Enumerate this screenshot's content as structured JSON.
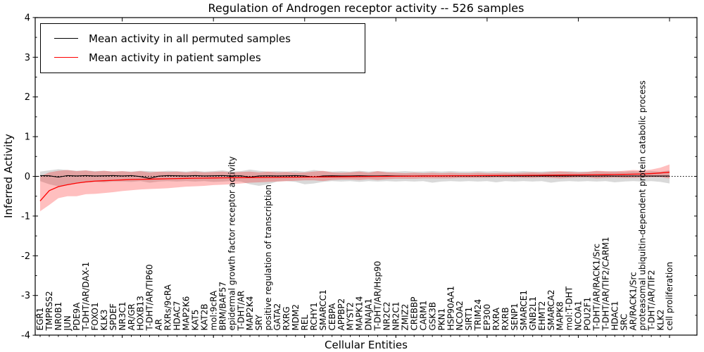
{
  "figure": {
    "title": "Regulation of Androgen receptor activity -- 526 samples",
    "xlabel": "Cellular Entities",
    "ylabel": "Inferred Activity"
  },
  "legend": {
    "entries": [
      {
        "label": "Mean activity in all permuted samples",
        "color": "#000000"
      },
      {
        "label": "Mean activity in patient samples",
        "color": "#ff0000"
      }
    ]
  },
  "axes": {
    "y_tick_labels": [
      "4",
      "3",
      "2",
      "1",
      "0",
      "-1",
      "-2",
      "-3",
      "-4"
    ],
    "y_tick_values": [
      4,
      3,
      2,
      1,
      0,
      -1,
      -2,
      -3,
      -4
    ],
    "y_minor_step": 0.5,
    "x_major_tick_indices": [
      9,
      19,
      29,
      39,
      49,
      59,
      69
    ]
  },
  "chart_data": {
    "type": "line",
    "title": "Regulation of Androgen receptor activity -- 526 samples",
    "xlabel": "Cellular Entities",
    "ylabel": "Inferred Activity",
    "ylim": [
      -4,
      4
    ],
    "grid": false,
    "legend_position": "upper left",
    "zero_line": true,
    "categories": [
      "EGR1",
      "TMPRSS2",
      "NR0B1",
      "JUN",
      "PDE9A",
      "T-DHT/AR/DAX-1",
      "FOXO1",
      "KLK3",
      "SPDEF",
      "NR3C1",
      "AR/GR",
      "HOXB13",
      "T-DHT/AR/TIP60",
      "AR",
      "RXRs/9cRA",
      "HDAC7",
      "MAP2K6",
      "KAT5",
      "KAT2B",
      "mol:9cRA",
      "BRM/BAF57",
      "epidermal growth factor receptor activity",
      "T-DHT/AR",
      "MAP2K4",
      "SRY",
      "positive regulation of transcription",
      "GATA2",
      "RXRG",
      "MDM2",
      "REL",
      "RCHY1",
      "SMARCC1",
      "CEBPA",
      "APPBP2",
      "MYST2",
      "MAPK14",
      "DNAJA1",
      "T-DHT/AR/Hsp90",
      "NR2C2",
      "NR2C1",
      "ZMIZ2",
      "CREBBP",
      "CARM1",
      "GSK3B",
      "PKN1",
      "HSP90AA1",
      "NCOA2",
      "SIRT1",
      "TRIM24",
      "EP300",
      "RXRA",
      "RXRB",
      "SENP1",
      "SMARCE1",
      "GNB2L1",
      "EHMT2",
      "SMARCA2",
      "MAPK8",
      "mol:T-DHT",
      "NCOA1",
      "POU2F1",
      "T-DHT/AR/RACK1/Src",
      "T-DHT/AR/TIF2/CARM1",
      "HDAC1",
      "SRC",
      "AR/RACK1/Src",
      "proteasomal ubiquitin-dependent protein catabolic process",
      "T-DHT/AR/TIF2",
      "KLK2",
      "cell proliferation"
    ],
    "series": [
      {
        "name": "Mean activity in all permuted samples",
        "color": "#000000",
        "band_color": "rgba(0,0,0,0.15)",
        "values": [
          0.02,
          0.015,
          -0.02,
          0.02,
          0.01,
          0.02,
          0.01,
          0.015,
          0.02,
          0.01,
          0.02,
          -0.005,
          -0.05,
          0.005,
          0.02,
          0.015,
          0.01,
          0.02,
          0.01,
          0.015,
          0.02,
          0.01,
          0.015,
          -0.02,
          0.01,
          0.015,
          0.01,
          0.015,
          0.02,
          0.01,
          -0.02,
          0.01,
          0.015,
          0.01,
          0.01,
          0.015,
          0.01,
          0.01,
          0.015,
          0.01,
          0.01,
          0.01,
          0.012,
          0.01,
          0.008,
          0.012,
          0.01,
          0.008,
          0.012,
          0.008,
          0.01,
          0.008,
          0.01,
          0.008,
          0.01,
          0.008,
          0.01,
          0.008,
          0.008,
          0.01,
          0.008,
          0.008,
          0.01,
          0.008,
          0.008,
          0.01,
          0.008,
          0.008,
          0.008,
          0.008
        ],
        "band_upper": [
          0.12,
          0.15,
          0.18,
          0.16,
          0.14,
          0.15,
          0.13,
          0.14,
          0.12,
          0.13,
          0.12,
          0.14,
          0.13,
          0.12,
          0.14,
          0.13,
          0.12,
          0.14,
          0.12,
          0.13,
          0.15,
          0.12,
          0.13,
          0.17,
          0.14,
          0.12,
          0.13,
          0.12,
          0.14,
          0.12,
          0.16,
          0.13,
          0.12,
          0.13,
          0.12,
          0.14,
          0.12,
          0.13,
          0.12,
          0.12,
          0.13,
          0.12,
          0.12,
          0.13,
          0.12,
          0.13,
          0.12,
          0.12,
          0.13,
          0.12,
          0.13,
          0.12,
          0.12,
          0.13,
          0.12,
          0.12,
          0.13,
          0.12,
          0.13,
          0.12,
          0.12,
          0.13,
          0.12,
          0.13,
          0.12,
          0.13,
          0.12,
          0.13,
          0.12,
          0.15
        ],
        "band_lower": [
          -0.12,
          -0.2,
          -0.25,
          -0.22,
          -0.18,
          -0.16,
          -0.14,
          -0.15,
          -0.13,
          -0.13,
          -0.14,
          -0.12,
          -0.16,
          -0.13,
          -0.12,
          -0.13,
          -0.12,
          -0.13,
          -0.12,
          -0.14,
          -0.13,
          -0.12,
          -0.13,
          -0.2,
          -0.24,
          -0.2,
          -0.13,
          -0.12,
          -0.14,
          -0.2,
          -0.18,
          -0.14,
          -0.12,
          -0.13,
          -0.12,
          -0.14,
          -0.12,
          -0.13,
          -0.12,
          -0.13,
          -0.12,
          -0.13,
          -0.12,
          -0.16,
          -0.13,
          -0.12,
          -0.13,
          -0.12,
          -0.13,
          -0.12,
          -0.15,
          -0.12,
          -0.13,
          -0.12,
          -0.13,
          -0.12,
          -0.16,
          -0.13,
          -0.12,
          -0.13,
          -0.12,
          -0.13,
          -0.12,
          -0.15,
          -0.13,
          -0.12,
          -0.13,
          -0.12,
          -0.14,
          -0.18
        ]
      },
      {
        "name": "Mean activity in patient samples",
        "color": "#ff0000",
        "band_color": "rgba(255,0,0,0.25)",
        "values": [
          -0.62,
          -0.36,
          -0.26,
          -0.21,
          -0.17,
          -0.14,
          -0.12,
          -0.11,
          -0.1,
          -0.09,
          -0.08,
          -0.075,
          -0.07,
          -0.065,
          -0.06,
          -0.055,
          -0.05,
          -0.047,
          -0.044,
          -0.041,
          -0.038,
          -0.035,
          -0.032,
          -0.03,
          -0.028,
          -0.026,
          -0.024,
          -0.022,
          -0.02,
          -0.018,
          -0.016,
          -0.014,
          -0.012,
          -0.01,
          -0.008,
          -0.006,
          -0.004,
          -0.002,
          0.0,
          0.002,
          0.004,
          0.006,
          0.008,
          0.01,
          0.012,
          0.013,
          0.015,
          0.016,
          0.018,
          0.02,
          0.021,
          0.022,
          0.024,
          0.025,
          0.026,
          0.028,
          0.03,
          0.032,
          0.034,
          0.036,
          0.038,
          0.04,
          0.043,
          0.046,
          0.05,
          0.055,
          0.06,
          0.07,
          0.085,
          0.105
        ],
        "band_upper": [
          0.0,
          0.1,
          0.14,
          0.16,
          0.13,
          0.15,
          0.12,
          0.14,
          0.12,
          0.13,
          0.11,
          0.13,
          0.1,
          0.12,
          0.11,
          0.12,
          0.1,
          0.12,
          0.1,
          0.11,
          0.12,
          0.1,
          0.11,
          0.12,
          0.1,
          0.12,
          0.1,
          0.11,
          0.09,
          0.1,
          0.12,
          0.14,
          0.1,
          0.09,
          0.1,
          0.12,
          0.09,
          0.13,
          0.1,
          0.09,
          0.08,
          0.09,
          0.08,
          0.09,
          0.08,
          0.09,
          0.08,
          0.08,
          0.09,
          0.08,
          0.08,
          0.09,
          0.08,
          0.09,
          0.1,
          0.09,
          0.11,
          0.13,
          0.11,
          0.1,
          0.11,
          0.14,
          0.13,
          0.12,
          0.14,
          0.16,
          0.15,
          0.17,
          0.22,
          0.3
        ],
        "band_lower": [
          -0.88,
          -0.72,
          -0.55,
          -0.5,
          -0.5,
          -0.45,
          -0.44,
          -0.42,
          -0.4,
          -0.37,
          -0.35,
          -0.33,
          -0.32,
          -0.31,
          -0.3,
          -0.28,
          -0.26,
          -0.25,
          -0.24,
          -0.22,
          -0.21,
          -0.2,
          -0.18,
          -0.16,
          -0.15,
          -0.14,
          -0.13,
          -0.12,
          -0.11,
          -0.1,
          -0.1,
          -0.12,
          -0.09,
          -0.08,
          -0.08,
          -0.09,
          -0.07,
          -0.09,
          -0.07,
          -0.06,
          -0.06,
          -0.06,
          -0.05,
          -0.05,
          -0.05,
          -0.05,
          -0.04,
          -0.04,
          -0.04,
          -0.04,
          -0.03,
          -0.04,
          -0.03,
          -0.04,
          -0.04,
          -0.03,
          -0.04,
          -0.05,
          -0.04,
          -0.03,
          -0.03,
          -0.05,
          -0.04,
          -0.03,
          -0.04,
          -0.04,
          -0.03,
          -0.02,
          -0.02,
          -0.05
        ]
      }
    ]
  }
}
